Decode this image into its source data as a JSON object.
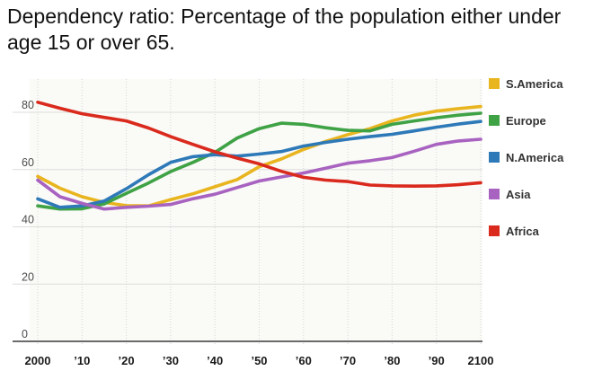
{
  "title_line1": "Dependency ratio: Percentage of the population either under",
  "title_line2": "age 15 or over 65.",
  "chart_data": {
    "type": "line",
    "title": "Dependency ratio: Percentage of the population either under age 15 or over 65.",
    "xlabel": "",
    "ylabel": "",
    "xlim": [
      2000,
      2100
    ],
    "ylim": [
      0,
      88
    ],
    "grid": true,
    "legend_position": "right",
    "x": [
      2000,
      2005,
      2010,
      2015,
      2020,
      2025,
      2030,
      2035,
      2040,
      2045,
      2050,
      2055,
      2060,
      2065,
      2070,
      2075,
      2080,
      2085,
      2090,
      2095,
      2100
    ],
    "x_ticks": [
      2000,
      2010,
      2020,
      2030,
      2040,
      2050,
      2060,
      2070,
      2080,
      2090,
      2100
    ],
    "x_tick_labels": [
      "2000",
      "’10",
      "’20",
      "’30",
      "’40",
      "’50",
      "’60",
      "’70",
      "’80",
      "’90",
      "2100"
    ],
    "y_ticks": [
      0,
      20,
      40,
      60,
      80
    ],
    "y_tick_labels": [
      "0",
      "20",
      "40",
      "60",
      "80"
    ],
    "colors": {
      "axis": "#3a3a3a",
      "gridline": "#dcdcdc",
      "v_gridline": "#d6d6d6",
      "x_label": "#1a1a1a",
      "y_label": "#4d4d4d",
      "plot_bg": "#fafaf7"
    },
    "series": [
      {
        "name": "S.America",
        "color": "#E9B51F",
        "values": [
          57.6,
          53.5,
          50.5,
          48.5,
          47.4,
          47.3,
          49.5,
          51.5,
          54,
          56.5,
          61,
          63.7,
          67,
          69.8,
          72.2,
          74.3,
          77,
          79,
          80.4,
          81.3,
          82
        ]
      },
      {
        "name": "Europe",
        "color": "#3FA245",
        "values": [
          47.3,
          46.2,
          46.3,
          48,
          51.7,
          55.3,
          59.3,
          62.5,
          66,
          71,
          74.3,
          76.2,
          75.8,
          74.6,
          73.7,
          73.5,
          75.8,
          77,
          78.1,
          79,
          79.7
        ]
      },
      {
        "name": "N.America",
        "color": "#2E79B8",
        "values": [
          49.8,
          46.8,
          47.3,
          49,
          53.3,
          58.2,
          62.5,
          64.5,
          65.2,
          64.7,
          65.4,
          66.3,
          68.2,
          69.5,
          70.6,
          71.5,
          72.3,
          73.5,
          74.8,
          75.9,
          76.8
        ]
      },
      {
        "name": "Asia",
        "color": "#A863C0",
        "values": [
          56.3,
          50.5,
          48.2,
          46.2,
          46.8,
          47.2,
          47.8,
          49.8,
          51.4,
          53.7,
          56,
          57.4,
          58.8,
          60.5,
          62.2,
          63.1,
          64.2,
          66.4,
          68.8,
          70,
          70.6
        ]
      },
      {
        "name": "Africa",
        "color": "#DA2A1D",
        "values": [
          83.5,
          81.4,
          79.5,
          78.2,
          77,
          74.5,
          71.5,
          68.8,
          66.2,
          64,
          62,
          59.4,
          57.3,
          56.3,
          55.8,
          54.6,
          54.3,
          54.2,
          54.3,
          54.7,
          55.4
        ]
      }
    ]
  }
}
